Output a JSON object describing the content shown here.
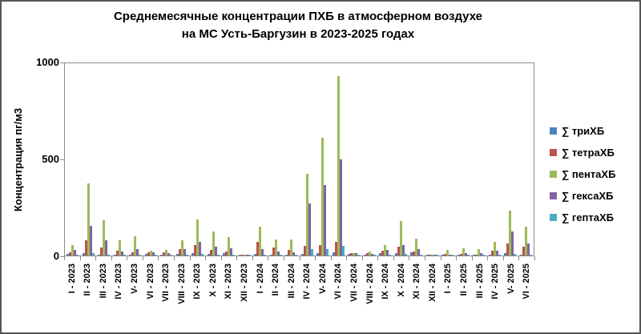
{
  "chart_data": {
    "type": "bar",
    "title": "Среднемесячные концентрации ПХБ в атмосферном воздухе",
    "title_line2": "на МС  Усть-Баргузин в 2023-2025 годах",
    "ylabel": "Концентрация пг/м3",
    "xlabel": "",
    "ylim": [
      0,
      1000
    ],
    "yticks": [
      0,
      500,
      1000
    ],
    "grid": false,
    "legend_position": "right",
    "categories": [
      "I - 2023",
      "II - 2023",
      "III - 2023",
      "IV - 2023",
      "V- 2023",
      "VI - 2023",
      "VII - 2023",
      "VIII - 2023",
      "IX - 2023",
      "X - 2023",
      "XI - 2023",
      "XII - 2023",
      "I - 2024",
      "II - 2024",
      "III - 2024",
      "IV - 2024",
      "V- 2024",
      "VI - 2024",
      "VII - 2024",
      "VIII - 2024",
      "IX - 2024",
      "X - 2024",
      "XI - 2024",
      "XII - 2024",
      "I - 2025",
      "II - 2025",
      "III - 2025",
      "IV - 2025",
      "V- 2025",
      "VI - 2025"
    ],
    "series": [
      {
        "name": "∑ триХБ",
        "color": "#4F81BD",
        "values": [
          7,
          11,
          6,
          4,
          5,
          8,
          4,
          8,
          11,
          8,
          11,
          2,
          8,
          5,
          5,
          10,
          11,
          17,
          8,
          4,
          11,
          12,
          17,
          2,
          2,
          3,
          3,
          4,
          11,
          6
        ]
      },
      {
        "name": "∑ тетраХБ",
        "color": "#C0504D",
        "values": [
          18,
          79,
          41,
          24,
          16,
          16,
          18,
          34,
          55,
          30,
          22,
          4,
          71,
          41,
          30,
          48,
          55,
          69,
          11,
          14,
          25,
          45,
          21,
          3,
          7,
          7,
          5,
          25,
          62,
          44
        ]
      },
      {
        "name": "∑ пентаХБ",
        "color": "#9BBB59",
        "values": [
          55,
          375,
          183,
          80,
          100,
          27,
          30,
          80,
          186,
          124,
          97,
          6,
          149,
          85,
          83,
          424,
          614,
          934,
          14,
          19,
          55,
          180,
          86,
          5,
          30,
          39,
          35,
          69,
          235,
          152
        ]
      },
      {
        "name": "∑ гексаХБ",
        "color": "#8064A2",
        "values": [
          30,
          155,
          78,
          20,
          33,
          16,
          11,
          34,
          70,
          46,
          36,
          3,
          34,
          20,
          16,
          272,
          368,
          502,
          11,
          8,
          28,
          55,
          34,
          3,
          5,
          14,
          11,
          25,
          124,
          62
        ]
      },
      {
        "name": "∑ гептаХБ",
        "color": "#4BACC6",
        "values": [
          4,
          11,
          5,
          3,
          3,
          3,
          3,
          4,
          8,
          4,
          3,
          2,
          5,
          4,
          4,
          32,
          35,
          50,
          4,
          3,
          4,
          7,
          3,
          2,
          2,
          2,
          2,
          3,
          7,
          4
        ]
      }
    ],
    "axis_color": "#8a8a8a",
    "text_color": "#000000"
  }
}
